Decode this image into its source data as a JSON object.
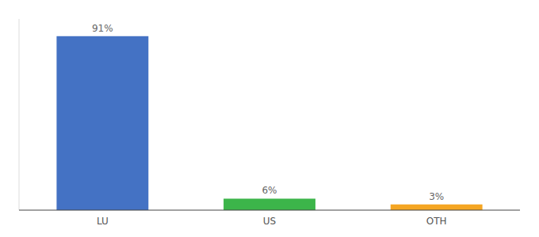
{
  "chart_data": {
    "type": "bar",
    "categories": [
      "LU",
      "US",
      "OTH"
    ],
    "values": [
      91,
      6,
      3
    ],
    "value_labels": [
      "91%",
      "6%",
      "3%"
    ],
    "colors": [
      "#4472c4",
      "#3cb54a",
      "#f5a623"
    ],
    "ylim": [
      0,
      100
    ],
    "data_labels": true,
    "tick_labels": "x"
  }
}
